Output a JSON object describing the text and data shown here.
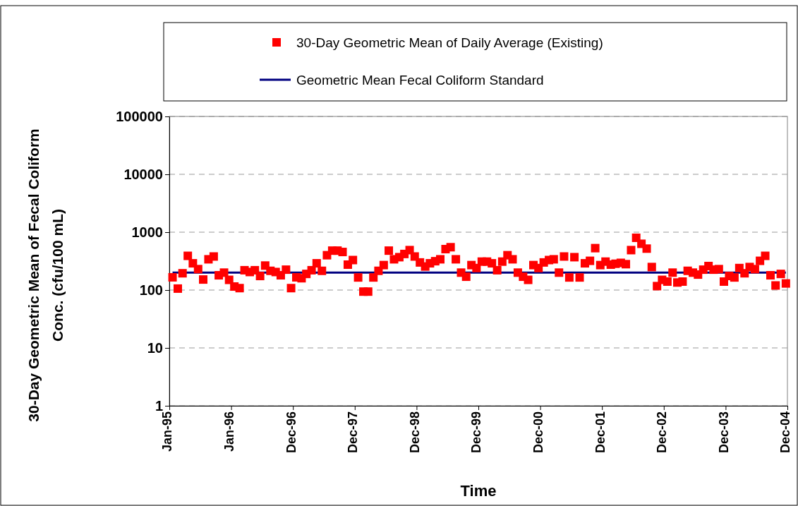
{
  "chart_data": {
    "type": "scatter",
    "xlabel": "Time",
    "ylabel": "30-Day Geometric Mean of Fecal Coliform Conc. (cfu/100 mL)",
    "x": [
      "1995-01-20",
      "1995-02-20",
      "1995-03-20",
      "1995-04-20",
      "1995-05-20",
      "1995-06-20",
      "1995-07-20",
      "1995-08-20",
      "1995-09-20",
      "1995-10-20",
      "1995-11-20",
      "1995-12-20",
      "1996-01-20",
      "1996-02-20",
      "1996-03-20",
      "1996-04-20",
      "1996-05-20",
      "1996-06-20",
      "1996-07-20",
      "1996-08-20",
      "1996-09-20",
      "1996-10-20",
      "1996-11-20",
      "1996-12-20",
      "1997-01-20",
      "1997-02-20",
      "1997-03-20",
      "1997-04-20",
      "1997-05-20",
      "1997-06-20",
      "1997-07-20",
      "1997-08-20",
      "1997-09-20",
      "1997-10-20",
      "1997-11-20",
      "1997-12-20",
      "1998-01-20",
      "1998-02-20",
      "1998-03-20",
      "1998-04-20",
      "1998-05-20",
      "1998-06-20",
      "1998-07-20",
      "1998-08-20",
      "1998-09-20",
      "1998-10-20",
      "1998-11-20",
      "1998-12-20",
      "1999-01-20",
      "1999-02-20",
      "1999-03-20",
      "1999-04-20",
      "1999-05-20",
      "1999-06-20",
      "1999-07-20",
      "1999-08-20",
      "1999-09-20",
      "1999-10-20",
      "1999-11-20",
      "1999-12-20",
      "2000-01-20",
      "2000-02-20",
      "2000-03-20",
      "2000-04-20",
      "2000-05-20",
      "2000-06-20",
      "2000-07-20",
      "2000-08-20",
      "2000-09-20",
      "2000-10-20",
      "2000-11-20",
      "2000-12-20",
      "2001-01-20",
      "2001-02-20",
      "2001-03-20",
      "2001-04-20",
      "2001-05-20",
      "2001-06-20",
      "2001-07-20",
      "2001-08-20",
      "2001-09-20",
      "2001-10-20",
      "2001-11-20",
      "2001-12-20",
      "2002-01-20",
      "2002-02-20",
      "2002-03-20",
      "2002-04-20",
      "2002-05-20",
      "2002-06-20",
      "2002-07-20",
      "2002-08-20",
      "2002-09-20",
      "2002-10-20",
      "2002-11-20",
      "2002-12-20",
      "2003-01-20",
      "2003-02-20",
      "2003-03-20",
      "2003-04-20",
      "2003-05-20",
      "2003-06-20",
      "2003-07-20",
      "2003-08-20",
      "2003-09-20",
      "2003-10-20",
      "2003-11-20",
      "2003-12-20",
      "2004-01-20",
      "2004-02-20",
      "2004-03-20",
      "2004-04-20",
      "2004-05-20",
      "2004-06-20",
      "2004-07-20",
      "2004-08-20",
      "2004-09-20",
      "2004-10-20",
      "2004-11-20",
      "2004-12-20"
    ],
    "series": [
      {
        "name": "30-Day Geometric Mean of Daily Average (Existing)",
        "color": "#ff0000",
        "marker": "square",
        "values": [
          166,
          106,
          195,
          390,
          290,
          230,
          152,
          340,
          380,
          180,
          200,
          150,
          115,
          108,
          220,
          205,
          220,
          175,
          265,
          215,
          205,
          180,
          225,
          108,
          166,
          160,
          190,
          220,
          290,
          215,
          400,
          480,
          480,
          455,
          275,
          330,
          165,
          94,
          94,
          165,
          215,
          270,
          480,
          340,
          370,
          420,
          490,
          380,
          300,
          255,
          290,
          315,
          340,
          510,
          550,
          340,
          200,
          170,
          270,
          240,
          310,
          310,
          290,
          220,
          310,
          400,
          340,
          200,
          170,
          150,
          270,
          240,
          300,
          330,
          340,
          200,
          380,
          165,
          370,
          165,
          290,
          320,
          530,
          270,
          310,
          275,
          285,
          295,
          280,
          490,
          800,
          630,
          520,
          250,
          117,
          150,
          140,
          200,
          135,
          140,
          215,
          200,
          185,
          225,
          260,
          225,
          230,
          140,
          175,
          165,
          240,
          195,
          250,
          230,
          320,
          390,
          180,
          120,
          190,
          130
        ]
      },
      {
        "type": "line",
        "name": "Geometric Mean Fecal Coliform Standard",
        "color": "#000080",
        "x": [
          "1995-01-20",
          "2004-12-20"
        ],
        "values": [
          200,
          200
        ]
      }
    ],
    "xlim": [
      "1995-01-01",
      "2004-12-29"
    ],
    "xticks": [
      {
        "value": "1995-01-01",
        "label": "Jan-95"
      },
      {
        "value": "1996-01-01",
        "label": "Jan-96"
      },
      {
        "value": "1996-12-31",
        "label": "Dec-96"
      },
      {
        "value": "1997-12-31",
        "label": "Dec-97"
      },
      {
        "value": "1998-12-31",
        "label": "Dec-98"
      },
      {
        "value": "1999-12-31",
        "label": "Dec-99"
      },
      {
        "value": "2000-12-30",
        "label": "Dec-00"
      },
      {
        "value": "2001-12-30",
        "label": "Dec-01"
      },
      {
        "value": "2002-12-30",
        "label": "Dec-02"
      },
      {
        "value": "2003-12-30",
        "label": "Dec-03"
      },
      {
        "value": "2004-12-29",
        "label": "Dec-04"
      }
    ],
    "ylim": [
      1,
      100000
    ],
    "yticks": [
      1,
      10,
      100,
      1000,
      10000,
      100000
    ],
    "log": true,
    "grid": "y",
    "legend": "top"
  }
}
